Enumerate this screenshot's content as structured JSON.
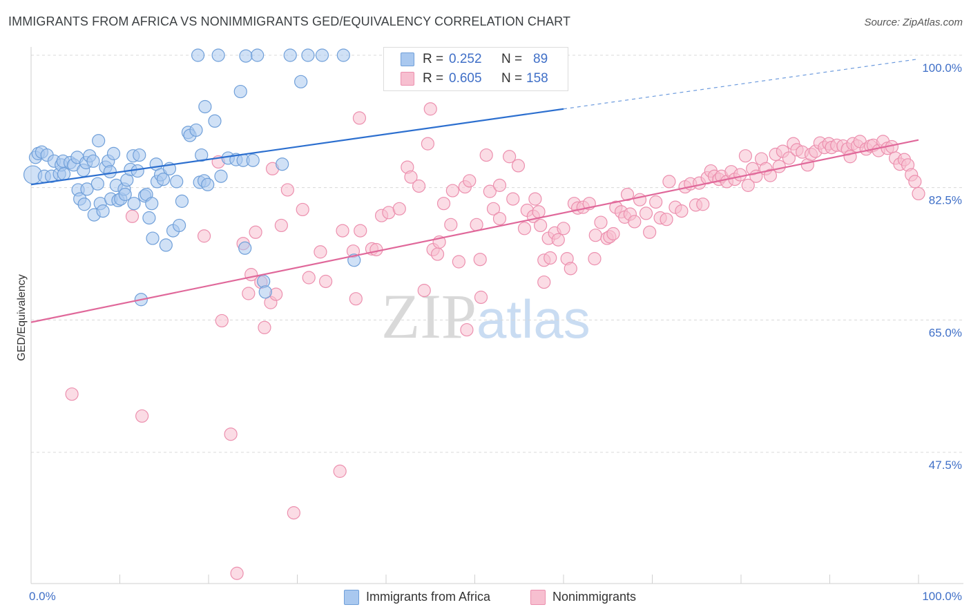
{
  "header": {
    "title": "IMMIGRANTS FROM AFRICA VS NONIMMIGRANTS GED/EQUIVALENCY CORRELATION CHART",
    "source": "Source: ZipAtlas.com"
  },
  "legend": {
    "r_label": "R =",
    "n_label": "N =",
    "blue": {
      "r": "0.252",
      "n": "89"
    },
    "pink": {
      "r": "0.605",
      "n": "158"
    }
  },
  "bottom_legend": {
    "blue_label": "Immigrants from Africa",
    "pink_label": "Nonimmigrants"
  },
  "watermark": {
    "zip": "ZIP",
    "atlas": "atlas"
  },
  "colors": {
    "blue_fill": "#a9c8ef",
    "blue_stroke": "#6f9fd9",
    "blue_line": "#2c6fcf",
    "pink_fill": "#f7bfd0",
    "pink_stroke": "#ec8fae",
    "pink_line": "#e0689a",
    "tick_text": "#3f6fc7",
    "grid": "#d8d8d8"
  },
  "chart_data": {
    "type": "scatter",
    "title": "IMMIGRANTS FROM AFRICA VS NONIMMIGRANTS GED/EQUIVALENCY CORRELATION CHART",
    "xlabel": "",
    "ylabel": "GED/Equivalency",
    "x_tick_labels": [
      "0.0%",
      "100.0%"
    ],
    "y_tick_labels": [
      "100.0%",
      "82.5%",
      "65.0%",
      "47.5%"
    ],
    "y_ticks": [
      100.0,
      82.5,
      65.0,
      47.5
    ],
    "xlim": [
      0,
      100
    ],
    "ylim": [
      30.5,
      101.5
    ],
    "grid": true,
    "series": [
      {
        "name": "Immigrants from Africa",
        "color": "#a9c8ef",
        "trend": {
          "x": [
            0,
            60
          ],
          "y": [
            82.9,
            92.9
          ],
          "dashed_to": [
            100,
            99.5
          ]
        },
        "points": [
          [
            0.2,
            84.2
          ],
          [
            0.5,
            86.5
          ],
          [
            0.8,
            87.0
          ],
          [
            1.2,
            87.2
          ],
          [
            1.5,
            84.0
          ],
          [
            1.8,
            86.8
          ],
          [
            2.3,
            84.0
          ],
          [
            2.6,
            86.0
          ],
          [
            3.2,
            84.3
          ],
          [
            3.4,
            85.5
          ],
          [
            3.6,
            86.0
          ],
          [
            3.7,
            84.3
          ],
          [
            4.4,
            85.8
          ],
          [
            4.8,
            85.5
          ],
          [
            5.2,
            86.5
          ],
          [
            5.3,
            82.2
          ],
          [
            5.5,
            81.0
          ],
          [
            5.9,
            84.8
          ],
          [
            6.0,
            80.3
          ],
          [
            6.2,
            85.8
          ],
          [
            6.3,
            82.3
          ],
          [
            6.6,
            86.7
          ],
          [
            7.0,
            86.0
          ],
          [
            7.1,
            78.9
          ],
          [
            7.5,
            83.0
          ],
          [
            7.6,
            88.7
          ],
          [
            7.8,
            80.4
          ],
          [
            8.1,
            79.4
          ],
          [
            8.4,
            85.2
          ],
          [
            8.7,
            86.0
          ],
          [
            8.9,
            84.6
          ],
          [
            9.0,
            81.0
          ],
          [
            9.3,
            87.0
          ],
          [
            9.6,
            82.8
          ],
          [
            9.8,
            80.8
          ],
          [
            10.1,
            81.0
          ],
          [
            10.5,
            82.3
          ],
          [
            10.6,
            81.6
          ],
          [
            10.8,
            83.5
          ],
          [
            11.2,
            84.9
          ],
          [
            11.6,
            80.4
          ],
          [
            11.5,
            86.7
          ],
          [
            12.0,
            84.7
          ],
          [
            12.2,
            86.8
          ],
          [
            12.4,
            67.7
          ],
          [
            12.8,
            81.4
          ],
          [
            13.0,
            81.6
          ],
          [
            13.3,
            78.5
          ],
          [
            13.6,
            80.4
          ],
          [
            13.7,
            75.8
          ],
          [
            14.1,
            85.6
          ],
          [
            14.2,
            83.3
          ],
          [
            14.6,
            84.2
          ],
          [
            14.9,
            83.6
          ],
          [
            15.2,
            74.9
          ],
          [
            15.6,
            85.0
          ],
          [
            16.0,
            76.8
          ],
          [
            16.4,
            83.3
          ],
          [
            16.7,
            77.5
          ],
          [
            17.0,
            80.7
          ],
          [
            17.7,
            89.8
          ],
          [
            17.9,
            89.4
          ],
          [
            18.6,
            90.1
          ],
          [
            18.8,
            100.0
          ],
          [
            19.0,
            83.2
          ],
          [
            19.2,
            86.8
          ],
          [
            19.5,
            83.4
          ],
          [
            19.6,
            93.2
          ],
          [
            19.9,
            82.9
          ],
          [
            20.7,
            91.3
          ],
          [
            21.1,
            100.0
          ],
          [
            21.4,
            84.0
          ],
          [
            22.2,
            86.4
          ],
          [
            23.1,
            86.2
          ],
          [
            23.6,
            95.2
          ],
          [
            23.9,
            86.1
          ],
          [
            24.1,
            74.5
          ],
          [
            24.2,
            99.9
          ],
          [
            25.0,
            86.1
          ],
          [
            25.5,
            100.0
          ],
          [
            26.2,
            70.1
          ],
          [
            26.4,
            68.7
          ],
          [
            28.3,
            85.6
          ],
          [
            29.2,
            100.0
          ],
          [
            30.4,
            96.5
          ],
          [
            31.2,
            100.0
          ],
          [
            32.8,
            100.0
          ],
          [
            35.2,
            100.0
          ],
          [
            36.4,
            72.9
          ]
        ]
      },
      {
        "name": "Nonimmigrants",
        "color": "#f7bfd0",
        "trend": {
          "x": [
            0,
            100
          ],
          "y": [
            64.7,
            88.8
          ]
        },
        "points": [
          [
            4.6,
            55.2
          ],
          [
            11.4,
            78.7
          ],
          [
            12.5,
            52.3
          ],
          [
            19.5,
            76.1
          ],
          [
            21.1,
            85.9
          ],
          [
            21.5,
            64.9
          ],
          [
            22.5,
            49.9
          ],
          [
            23.9,
            75.1
          ],
          [
            24.5,
            68.5
          ],
          [
            24.8,
            71.0
          ],
          [
            25.3,
            76.6
          ],
          [
            25.9,
            70.0
          ],
          [
            26.3,
            64.0
          ],
          [
            27.0,
            67.3
          ],
          [
            27.6,
            68.4
          ],
          [
            28.2,
            77.5
          ],
          [
            28.9,
            82.2
          ],
          [
            29.6,
            39.5
          ],
          [
            30.6,
            79.6
          ],
          [
            31.3,
            70.6
          ],
          [
            32.6,
            74.0
          ],
          [
            33.2,
            70.1
          ],
          [
            34.8,
            45.0
          ],
          [
            35.1,
            76.8
          ],
          [
            36.3,
            74.1
          ],
          [
            36.6,
            67.8
          ],
          [
            37.0,
            91.7
          ],
          [
            37.1,
            76.8
          ],
          [
            38.4,
            74.4
          ],
          [
            38.9,
            74.3
          ],
          [
            39.5,
            78.8
          ],
          [
            40.3,
            79.2
          ],
          [
            41.5,
            79.7
          ],
          [
            42.4,
            85.2
          ],
          [
            42.8,
            83.9
          ],
          [
            43.7,
            82.7
          ],
          [
            44.3,
            68.9
          ],
          [
            44.7,
            88.3
          ],
          [
            45.0,
            92.9
          ],
          [
            45.3,
            74.3
          ],
          [
            45.8,
            73.7
          ],
          [
            46.0,
            75.3
          ],
          [
            46.5,
            80.4
          ],
          [
            47.3,
            77.6
          ],
          [
            47.5,
            82.1
          ],
          [
            48.2,
            72.7
          ],
          [
            48.9,
            82.6
          ],
          [
            49.1,
            63.7
          ],
          [
            49.4,
            83.4
          ],
          [
            50.2,
            77.6
          ],
          [
            50.6,
            73.0
          ],
          [
            50.7,
            68.0
          ],
          [
            51.3,
            86.8
          ],
          [
            51.7,
            82.0
          ],
          [
            52.1,
            79.7
          ],
          [
            52.8,
            82.8
          ],
          [
            52.8,
            78.4
          ],
          [
            53.9,
            86.6
          ],
          [
            54.3,
            81.0
          ],
          [
            54.9,
            85.4
          ],
          [
            55.6,
            77.1
          ],
          [
            55.9,
            79.5
          ],
          [
            56.6,
            78.7
          ],
          [
            56.8,
            81.0
          ],
          [
            57.2,
            79.3
          ],
          [
            57.4,
            77.5
          ],
          [
            57.8,
            70.0
          ],
          [
            57.8,
            72.9
          ],
          [
            58.3,
            75.8
          ],
          [
            58.5,
            73.2
          ],
          [
            59.0,
            76.5
          ],
          [
            59.4,
            75.6
          ],
          [
            60.0,
            77.1
          ],
          [
            60.4,
            73.1
          ],
          [
            60.8,
            71.8
          ],
          [
            61.2,
            80.4
          ],
          [
            61.6,
            79.8
          ],
          [
            62.2,
            79.9
          ],
          [
            62.9,
            80.4
          ],
          [
            63.5,
            73.1
          ],
          [
            63.6,
            76.2
          ],
          [
            64.2,
            77.9
          ],
          [
            64.9,
            75.8
          ],
          [
            65.2,
            76.0
          ],
          [
            65.6,
            76.4
          ],
          [
            65.9,
            79.9
          ],
          [
            66.5,
            79.3
          ],
          [
            66.9,
            78.6
          ],
          [
            67.2,
            81.6
          ],
          [
            67.5,
            79.0
          ],
          [
            68.0,
            78.0
          ],
          [
            68.6,
            80.9
          ],
          [
            69.3,
            79.1
          ],
          [
            69.7,
            76.6
          ],
          [
            70.4,
            80.6
          ],
          [
            70.9,
            78.5
          ],
          [
            71.6,
            78.3
          ],
          [
            71.9,
            83.3
          ],
          [
            72.6,
            79.9
          ],
          [
            73.3,
            79.4
          ],
          [
            73.7,
            82.6
          ],
          [
            74.3,
            83.0
          ],
          [
            74.9,
            80.2
          ],
          [
            75.3,
            83.1
          ],
          [
            75.7,
            80.3
          ],
          [
            76.2,
            83.8
          ],
          [
            76.6,
            84.7
          ],
          [
            77.0,
            84.0
          ],
          [
            77.5,
            83.6
          ],
          [
            77.8,
            84.0
          ],
          [
            78.4,
            83.3
          ],
          [
            78.9,
            84.6
          ],
          [
            79.3,
            83.6
          ],
          [
            79.9,
            84.2
          ],
          [
            80.5,
            86.7
          ],
          [
            80.8,
            82.8
          ],
          [
            81.3,
            85.0
          ],
          [
            81.7,
            84.0
          ],
          [
            82.3,
            86.3
          ],
          [
            82.8,
            85.0
          ],
          [
            83.3,
            84.1
          ],
          [
            83.9,
            86.9
          ],
          [
            84.3,
            85.3
          ],
          [
            84.7,
            87.3
          ],
          [
            85.4,
            86.4
          ],
          [
            85.9,
            88.3
          ],
          [
            86.3,
            87.5
          ],
          [
            86.9,
            87.2
          ],
          [
            87.5,
            85.5
          ],
          [
            87.9,
            86.9
          ],
          [
            88.4,
            87.3
          ],
          [
            88.9,
            88.4
          ],
          [
            89.4,
            87.8
          ],
          [
            89.9,
            88.3
          ],
          [
            90.2,
            87.8
          ],
          [
            90.8,
            88.1
          ],
          [
            91.5,
            88.0
          ],
          [
            92.0,
            87.6
          ],
          [
            92.3,
            86.6
          ],
          [
            92.6,
            88.3
          ],
          [
            93.1,
            88.0
          ],
          [
            93.4,
            88.6
          ],
          [
            94.1,
            87.6
          ],
          [
            94.6,
            88.0
          ],
          [
            94.9,
            88.1
          ],
          [
            95.5,
            87.4
          ],
          [
            96.0,
            88.6
          ],
          [
            96.5,
            87.7
          ],
          [
            97.0,
            87.9
          ],
          [
            97.4,
            86.4
          ],
          [
            97.9,
            85.6
          ],
          [
            98.4,
            86.2
          ],
          [
            98.8,
            85.5
          ],
          [
            99.2,
            84.2
          ],
          [
            99.6,
            83.3
          ],
          [
            100.0,
            81.7
          ],
          [
            23.2,
            31.5
          ],
          [
            27.2,
            85.0
          ]
        ]
      }
    ]
  }
}
